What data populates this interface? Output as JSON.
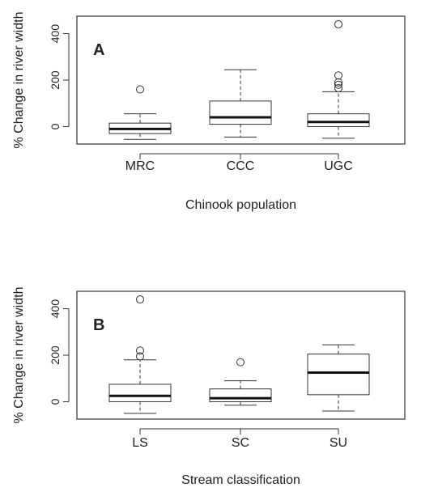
{
  "colors": {
    "line": "#333333",
    "box_fill": "#ffffff",
    "background": "#ffffff"
  },
  "chart_data": [
    {
      "type": "boxplot",
      "panel_label": "A",
      "xlabel": "Chinook population",
      "ylabel": "% Change in river width",
      "ylim": [
        -75,
        475
      ],
      "yticks": [
        0,
        200,
        400
      ],
      "grid": false,
      "legend": "none",
      "categories": [
        "MRC",
        "CCC",
        "UGC"
      ],
      "boxes": [
        {
          "category": "MRC",
          "whisker_low": -55,
          "q1": -30,
          "median": -10,
          "q3": 15,
          "whisker_high": 55,
          "outliers": [
            160
          ]
        },
        {
          "category": "CCC",
          "whisker_low": -45,
          "q1": 10,
          "median": 40,
          "q3": 110,
          "whisker_high": 245,
          "outliers": []
        },
        {
          "category": "UGC",
          "whisker_low": -50,
          "q1": 0,
          "median": 20,
          "q3": 55,
          "whisker_high": 150,
          "outliers": [
            165,
            180,
            190,
            220,
            440
          ]
        }
      ]
    },
    {
      "type": "boxplot",
      "panel_label": "B",
      "xlabel": "Stream classification",
      "ylabel": "% Change in river width",
      "ylim": [
        -75,
        475
      ],
      "yticks": [
        0,
        200,
        400
      ],
      "grid": false,
      "legend": "none",
      "categories": [
        "LS",
        "SC",
        "SU"
      ],
      "boxes": [
        {
          "category": "LS",
          "whisker_low": -50,
          "q1": 0,
          "median": 25,
          "q3": 75,
          "whisker_high": 180,
          "outliers": [
            195,
            220,
            440
          ]
        },
        {
          "category": "SC",
          "whisker_low": -15,
          "q1": 0,
          "median": 15,
          "q3": 55,
          "whisker_high": 90,
          "outliers": [
            170
          ]
        },
        {
          "category": "SU",
          "whisker_low": -40,
          "q1": 30,
          "median": 125,
          "q3": 205,
          "whisker_high": 245,
          "outliers": []
        }
      ]
    }
  ]
}
